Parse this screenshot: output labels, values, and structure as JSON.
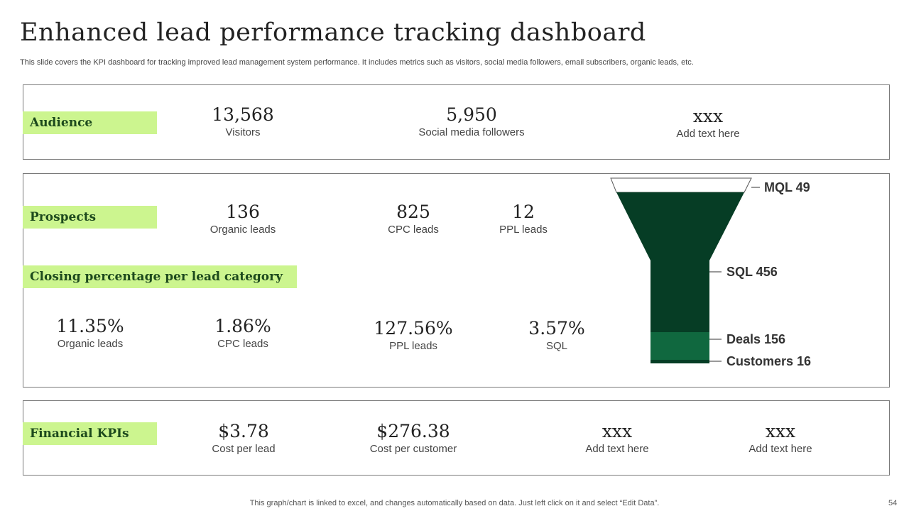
{
  "header": {
    "title": "Enhanced lead performance tracking dashboard",
    "subtitle": "This slide covers the KPI dashboard for tracking improved lead management system performance. It includes metrics such as visitors, social media followers, email subscribers, organic leads, etc."
  },
  "audience": {
    "tag": "Audience",
    "metrics": [
      {
        "value": "13,568",
        "label": "Visitors"
      },
      {
        "value": "5,950",
        "label": "Social media followers"
      },
      {
        "value": "xxx",
        "label": "Add text here"
      }
    ]
  },
  "prospects": {
    "tag": "Prospects",
    "metrics": [
      {
        "value": "136",
        "label": "Organic leads"
      },
      {
        "value": "825",
        "label": "CPC leads"
      },
      {
        "value": "12",
        "label": "PPL leads"
      }
    ]
  },
  "closing": {
    "tag": "Closing percentage per lead category",
    "metrics": [
      {
        "value": "11.35%",
        "label": "Organic leads"
      },
      {
        "value": "1.86%",
        "label": "CPC leads"
      },
      {
        "value": "127.56%",
        "label": "PPL leads"
      },
      {
        "value": "3.57%",
        "label": "SQL"
      }
    ]
  },
  "funnel": {
    "stages": [
      {
        "label": "MQL 49",
        "name": "MQL",
        "value": 49,
        "color": "#ffffff"
      },
      {
        "label": "SQL 456",
        "name": "SQL",
        "value": 456,
        "color": "#063d25"
      },
      {
        "label": "Deals 156",
        "name": "Deals",
        "value": 156,
        "color": "#10683f"
      },
      {
        "label": "Customers 16",
        "name": "Customers",
        "value": 16,
        "color": "#063d25"
      }
    ],
    "colors": {
      "dark": "#063d25",
      "mid": "#10683f"
    }
  },
  "financial": {
    "tag": "Financial KPIs",
    "metrics": [
      {
        "value": "$3.78",
        "label": "Cost per lead"
      },
      {
        "value": "$276.38",
        "label": "Cost per customer"
      },
      {
        "value": "xxx",
        "label": "Add text here"
      },
      {
        "value": "xxx",
        "label": "Add text here"
      }
    ]
  },
  "footer": {
    "note": "This graph/chart is linked to excel,  and changes automatically based on data. Just left click on it and select “Edit Data”.",
    "page": "54"
  },
  "theme": {
    "tag_bg": "#ccf58f",
    "border": "#7a7a7a"
  }
}
